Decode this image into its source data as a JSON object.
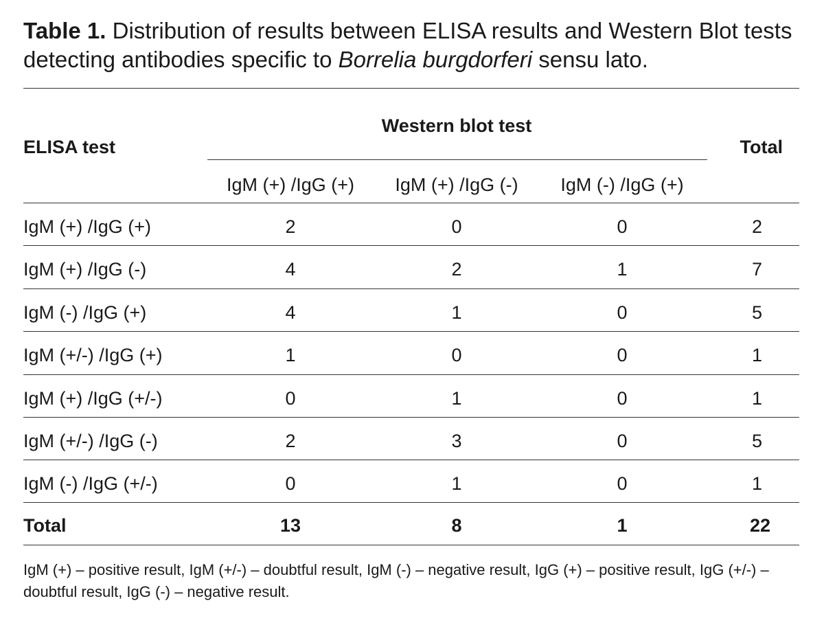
{
  "caption": {
    "label": "Table 1.",
    "text_before": " Distribution of results between ELISA results and Western Blot tests detecting antibodies specific to ",
    "species": "Borrelia burgdorferi",
    "text_after": " sensu lato."
  },
  "table": {
    "row_header": "ELISA test",
    "group_header": "Western blot test",
    "total_header": "Total",
    "columns": [
      "IgM (+) /IgG (+)",
      "IgM (+) /IgG (-)",
      "IgM (-) /IgG (+)"
    ],
    "rows": [
      {
        "label": "IgM (+) /IgG (+)",
        "values": [
          "2",
          "0",
          "0"
        ],
        "total": "2"
      },
      {
        "label": "IgM (+) /IgG (-)",
        "values": [
          "4",
          "2",
          "1"
        ],
        "total": "7"
      },
      {
        "label": "IgM (-) /IgG (+)",
        "values": [
          "4",
          "1",
          "0"
        ],
        "total": "5"
      },
      {
        "label": "IgM (+/-) /IgG (+)",
        "values": [
          "1",
          "0",
          "0"
        ],
        "total": "1"
      },
      {
        "label": "IgM (+) /IgG (+/-)",
        "values": [
          "0",
          "1",
          "0"
        ],
        "total": "1"
      },
      {
        "label": "IgM (+/-) /IgG (-)",
        "values": [
          "2",
          "3",
          "0"
        ],
        "total": "5"
      },
      {
        "label": "IgM (-) /IgG (+/-)",
        "values": [
          "0",
          "1",
          "0"
        ],
        "total": "1"
      }
    ],
    "total_row": {
      "label": "Total",
      "values": [
        "13",
        "8",
        "1"
      ],
      "total": "22"
    }
  },
  "footnote": "IgM (+) – positive result, IgM (+/-) – doubtful result, IgM (-) – negative result, IgG (+) – positive result, IgG (+/-) – doubtful result, IgG (-) – negative result."
}
